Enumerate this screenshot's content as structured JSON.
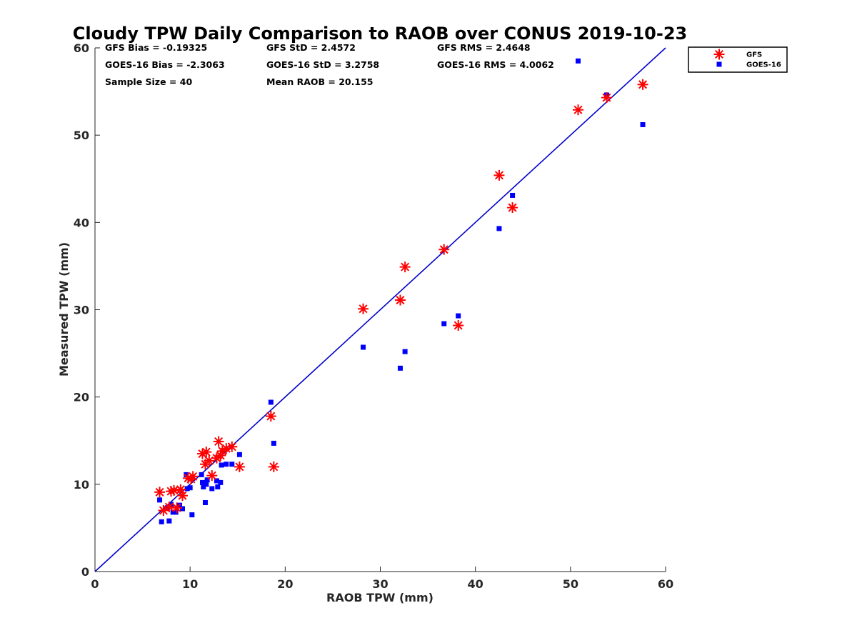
{
  "chart_data": {
    "type": "scatter",
    "title": "Cloudy TPW Daily Comparison to RAOB over CONUS 2019-10-23",
    "xlabel": "RAOB TPW (mm)",
    "ylabel": "Measured TPW (mm)",
    "xlim": [
      0,
      60
    ],
    "ylim": [
      0,
      60
    ],
    "xticks": [
      "0",
      "10",
      "20",
      "30",
      "40",
      "50",
      "60"
    ],
    "yticks": [
      "0",
      "10",
      "20",
      "30",
      "40",
      "50",
      "60"
    ],
    "grid": false,
    "legend_position": "outside-top-right",
    "reference_line": {
      "x": [
        0,
        60
      ],
      "y": [
        0,
        60
      ],
      "color": "#0000cc"
    },
    "stats": [
      [
        "GFS Bias = -0.19325",
        "GFS StD = 2.4572",
        "GFS RMS = 2.4648"
      ],
      [
        "GOES-16 Bias = -2.3063",
        "GOES-16 StD = 3.2758",
        "GOES-16 RMS = 4.0062"
      ],
      [
        "Sample Size = 40",
        "Mean RAOB = 20.155",
        ""
      ]
    ],
    "series": [
      {
        "name": "GFS",
        "marker": "asterisk",
        "color": "#ff0000",
        "points": [
          [
            6.8,
            9.1
          ],
          [
            7.2,
            7.0
          ],
          [
            7.8,
            7.4
          ],
          [
            8.0,
            9.2
          ],
          [
            8.3,
            9.3
          ],
          [
            8.6,
            7.3
          ],
          [
            9.0,
            9.4
          ],
          [
            9.2,
            8.7
          ],
          [
            9.8,
            10.7
          ],
          [
            10.1,
            10.6
          ],
          [
            10.3,
            10.9
          ],
          [
            11.3,
            13.5
          ],
          [
            11.6,
            12.3
          ],
          [
            11.7,
            13.7
          ],
          [
            12.0,
            12.7
          ],
          [
            12.3,
            11.0
          ],
          [
            12.8,
            13.0
          ],
          [
            13.0,
            14.9
          ],
          [
            13.2,
            13.3
          ],
          [
            13.4,
            13.8
          ],
          [
            13.8,
            14.1
          ],
          [
            14.4,
            14.3
          ],
          [
            15.2,
            12.0
          ],
          [
            18.5,
            17.8
          ],
          [
            18.8,
            12.0
          ],
          [
            28.2,
            30.1
          ],
          [
            32.1,
            31.1
          ],
          [
            32.6,
            34.9
          ],
          [
            36.7,
            36.9
          ],
          [
            38.2,
            28.2
          ],
          [
            42.5,
            45.4
          ],
          [
            43.9,
            41.7
          ],
          [
            50.8,
            52.9
          ],
          [
            53.8,
            54.3
          ],
          [
            57.6,
            55.8
          ]
        ]
      },
      {
        "name": "GOES-16",
        "marker": "square",
        "color": "#0000ff",
        "points": [
          [
            6.8,
            8.2
          ],
          [
            7.0,
            5.7
          ],
          [
            7.6,
            7.3
          ],
          [
            7.8,
            5.8
          ],
          [
            8.0,
            7.7
          ],
          [
            8.2,
            6.8
          ],
          [
            8.5,
            6.8
          ],
          [
            8.9,
            7.6
          ],
          [
            9.2,
            7.2
          ],
          [
            9.6,
            11.1
          ],
          [
            9.7,
            9.5
          ],
          [
            10.0,
            9.6
          ],
          [
            10.2,
            6.5
          ],
          [
            11.2,
            11.1
          ],
          [
            11.3,
            10.2
          ],
          [
            11.4,
            9.7
          ],
          [
            11.6,
            7.9
          ],
          [
            11.7,
            10.0
          ],
          [
            11.8,
            10.5
          ],
          [
            12.3,
            9.5
          ],
          [
            12.8,
            10.4
          ],
          [
            12.9,
            9.7
          ],
          [
            13.2,
            10.2
          ],
          [
            13.3,
            12.2
          ],
          [
            13.8,
            12.3
          ],
          [
            14.4,
            12.3
          ],
          [
            15.2,
            13.4
          ],
          [
            18.5,
            19.4
          ],
          [
            18.8,
            14.7
          ],
          [
            28.2,
            25.7
          ],
          [
            32.1,
            23.3
          ],
          [
            32.6,
            25.2
          ],
          [
            36.7,
            28.4
          ],
          [
            38.2,
            29.3
          ],
          [
            42.5,
            39.3
          ],
          [
            43.9,
            43.1
          ],
          [
            50.8,
            58.5
          ],
          [
            53.8,
            54.6
          ],
          [
            57.6,
            51.2
          ]
        ]
      }
    ]
  }
}
